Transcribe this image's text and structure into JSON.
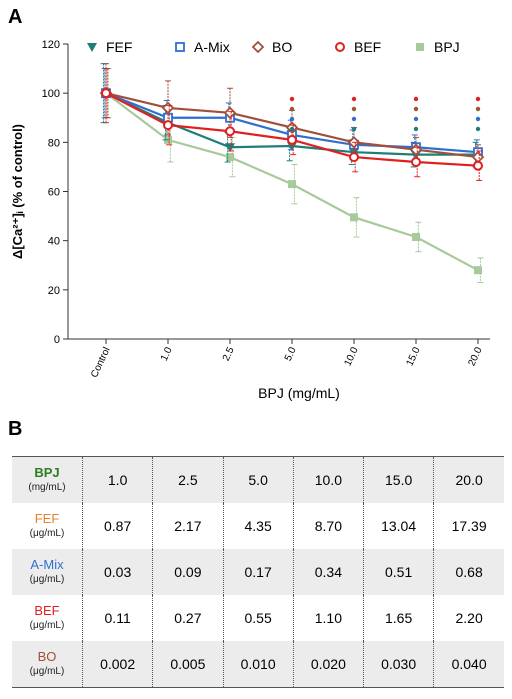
{
  "panel_a_label": "A",
  "panel_b_label": "B",
  "chart_data": {
    "type": "line",
    "categories": [
      "Control",
      "1.0",
      "2.5",
      "5.0",
      "10.0",
      "15.0",
      "20.0"
    ],
    "xlabel": "BPJ (mg/mL)",
    "ylabel": "Δ[Ca²⁺]ᵢ (% of control)",
    "ylim": [
      0,
      120
    ],
    "yticks": [
      0,
      20,
      40,
      60,
      80,
      100,
      120
    ],
    "legend_position": "top",
    "series": [
      {
        "name": "FEF",
        "marker": "triangle",
        "color": "#1e7f78",
        "values": [
          100,
          88,
          78,
          78.5,
          76,
          75,
          75
        ],
        "errors": [
          12,
          7,
          6,
          6,
          5,
          5,
          5
        ]
      },
      {
        "name": "A-Mix",
        "marker": "square-open",
        "color": "#2f6fd1",
        "values": [
          100,
          90,
          90,
          83,
          79,
          78,
          76
        ],
        "errors": [
          10,
          7,
          6,
          6,
          6,
          5,
          5
        ]
      },
      {
        "name": "BO",
        "marker": "diamond-open",
        "color": "#a0503a",
        "values": [
          100,
          94,
          92,
          86,
          80,
          77,
          74
        ],
        "errors": [
          12,
          11,
          10,
          7,
          6,
          5,
          5
        ]
      },
      {
        "name": "BEF",
        "marker": "circle-open",
        "color": "#e02020",
        "values": [
          100,
          87,
          84.5,
          81,
          74,
          72,
          70.5
        ],
        "errors": [
          10,
          8,
          8,
          6,
          6,
          6,
          6
        ]
      },
      {
        "name": "BPJ",
        "marker": "square",
        "color": "#a8c99a",
        "values": [
          100,
          81,
          74,
          63,
          49.5,
          41.5,
          28
        ],
        "errors": [
          10,
          9,
          8,
          8,
          8,
          6,
          5
        ]
      }
    ],
    "significance_markers": [
      {
        "category": "5.0",
        "colors": [
          "#e02020",
          "#a0503a",
          "#2f6fd1",
          "#1e7f78"
        ]
      },
      {
        "category": "10.0",
        "colors": [
          "#e02020",
          "#a0503a",
          "#2f6fd1",
          "#1e7f78"
        ]
      },
      {
        "category": "15.0",
        "colors": [
          "#e02020",
          "#a0503a",
          "#2f6fd1",
          "#1e7f78"
        ]
      },
      {
        "category": "20.0",
        "colors": [
          "#e02020",
          "#a0503a",
          "#2f6fd1",
          "#1e7f78"
        ]
      }
    ]
  },
  "table": {
    "rows": [
      {
        "name": "BPJ",
        "unit": "(mg/mL)",
        "color": "#2e7d1e",
        "values": [
          "1.0",
          "2.5",
          "5.0",
          "10.0",
          "15.0",
          "20.0"
        ]
      },
      {
        "name": "FEF",
        "unit": "(μg/mL)",
        "color": "#e8822a",
        "values": [
          "0.87",
          "2.17",
          "4.35",
          "8.70",
          "13.04",
          "17.39"
        ]
      },
      {
        "name": "A-Mix",
        "unit": "(μg/mL)",
        "color": "#2f6fd1",
        "values": [
          "0.03",
          "0.09",
          "0.17",
          "0.34",
          "0.51",
          "0.68"
        ]
      },
      {
        "name": "BEF",
        "unit": "(μg/mL)",
        "color": "#e02020",
        "values": [
          "0.11",
          "0.27",
          "0.55",
          "1.10",
          "1.65",
          "2.20"
        ]
      },
      {
        "name": "BO",
        "unit": "(μg/mL)",
        "color": "#a0503a",
        "values": [
          "0.002",
          "0.005",
          "0.010",
          "0.020",
          "0.030",
          "0.040"
        ]
      }
    ]
  }
}
